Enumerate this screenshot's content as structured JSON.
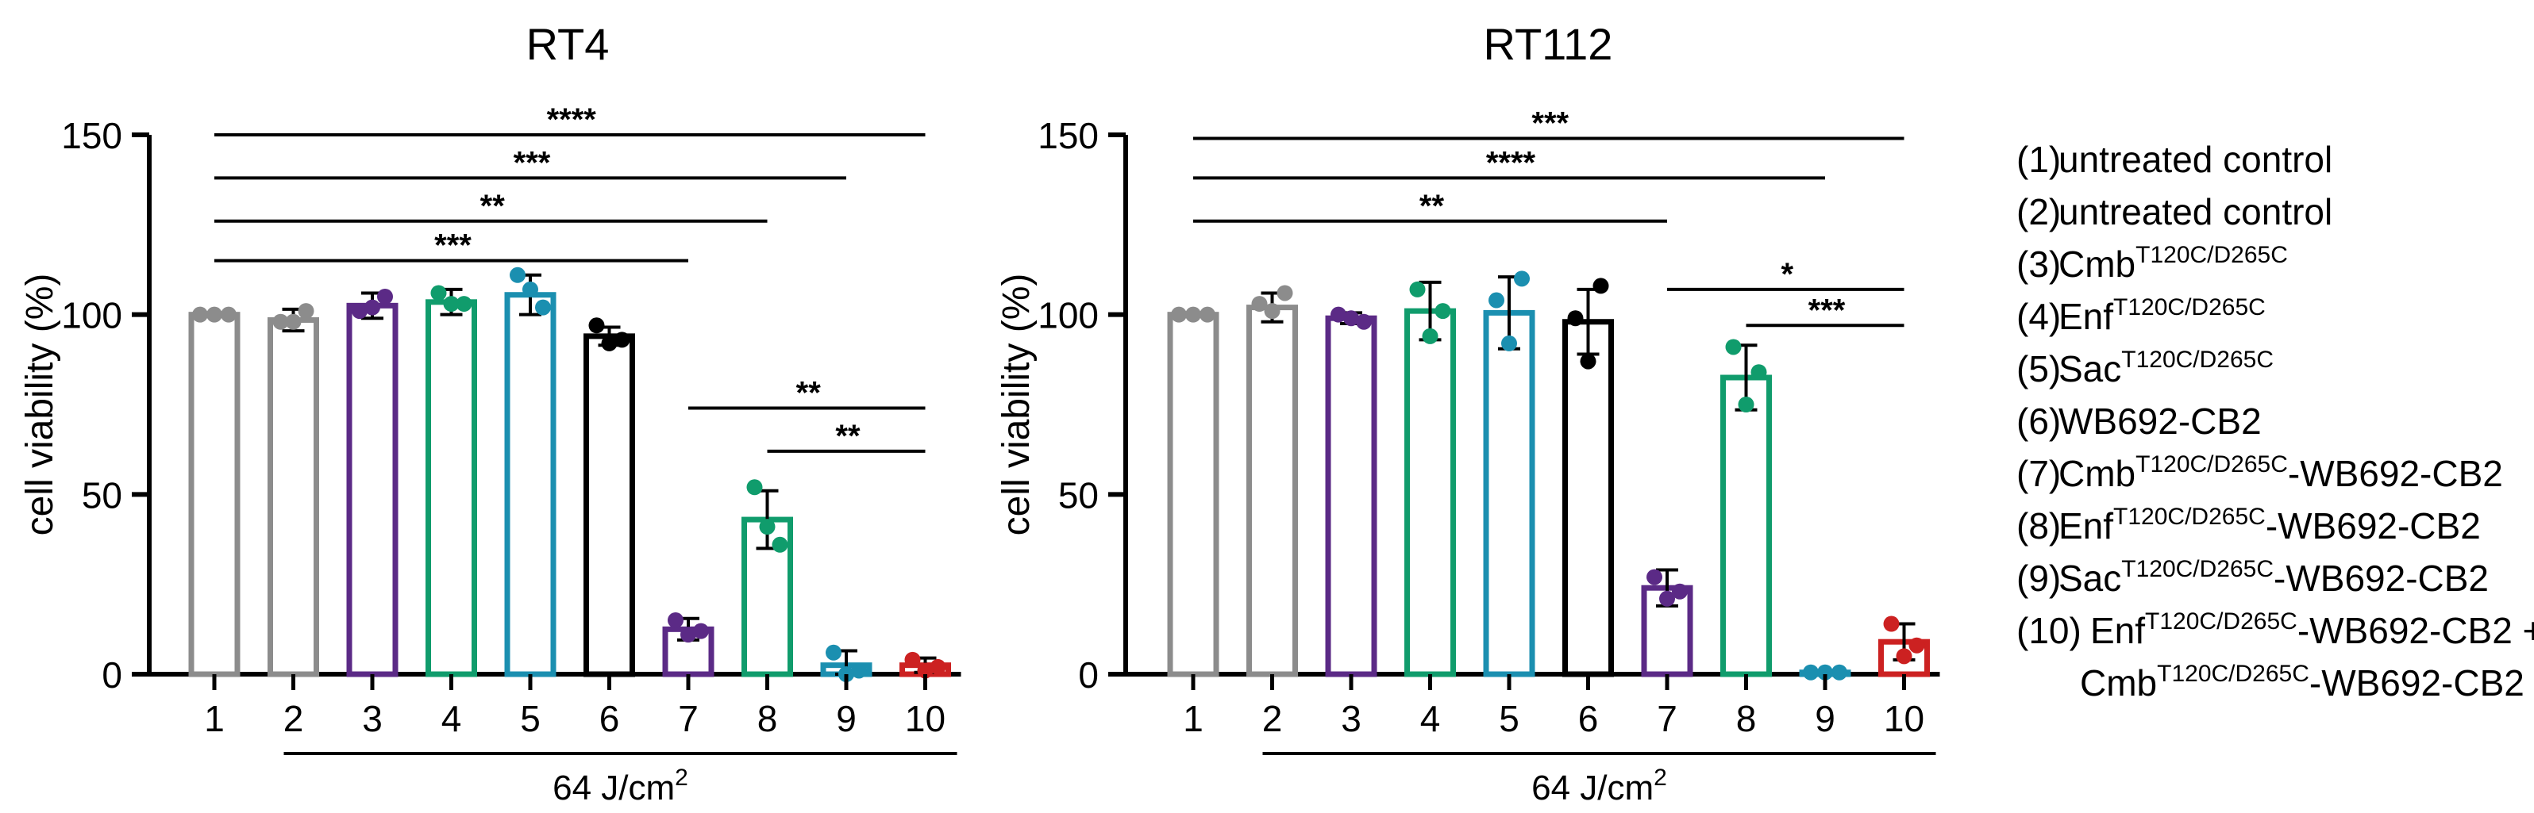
{
  "chart_data": [
    {
      "type": "bar",
      "title": "RT4",
      "ylabel": "cell viability (%)",
      "xlabel": "64 J/cm²",
      "xlabel_main": "64 J/cm",
      "xlabel_sup": "2",
      "ylim": [
        0,
        150
      ],
      "yticks": [
        0,
        50,
        100,
        150
      ],
      "categories": [
        "1",
        "2",
        "3",
        "4",
        "5",
        "6",
        "7",
        "8",
        "9",
        "10"
      ],
      "values": [
        100,
        98.5,
        102.5,
        103.5,
        105.5,
        94,
        12.5,
        43,
        2.5,
        2.5
      ],
      "errors": [
        0.5,
        3,
        3.5,
        3.5,
        5.5,
        2.5,
        3,
        8,
        4,
        2
      ],
      "points": [
        [
          100,
          100,
          100
        ],
        [
          98,
          101,
          98
        ],
        [
          101,
          105,
          102
        ],
        [
          106,
          103,
          103
        ],
        [
          111,
          102,
          107
        ],
        [
          97,
          93,
          92
        ],
        [
          15,
          12,
          11
        ],
        [
          52,
          36,
          41
        ],
        [
          6,
          1,
          0
        ],
        [
          4,
          2,
          1
        ]
      ],
      "bracket": {
        "from": 2,
        "to": 10
      },
      "significance": [
        {
          "from": 1,
          "to": 10,
          "label": "****",
          "y": 150
        },
        {
          "from": 1,
          "to": 9,
          "label": "***",
          "y": 138
        },
        {
          "from": 1,
          "to": 8,
          "label": "**",
          "y": 126
        },
        {
          "from": 1,
          "to": 7,
          "label": "***",
          "y": 115
        },
        {
          "from": 7,
          "to": 10,
          "label": "**",
          "y": 74
        },
        {
          "from": 8,
          "to": 10,
          "label": "**",
          "y": 62
        }
      ]
    },
    {
      "type": "bar",
      "title": "RT112",
      "ylabel": "cell viability (%)",
      "xlabel": "64 J/cm²",
      "xlabel_main": "64 J/cm",
      "xlabel_sup": "2",
      "ylim": [
        0,
        150
      ],
      "yticks": [
        0,
        50,
        100,
        150
      ],
      "categories": [
        "1",
        "2",
        "3",
        "4",
        "5",
        "6",
        "7",
        "8",
        "9",
        "10"
      ],
      "values": [
        100,
        102,
        99,
        101,
        100.5,
        98,
        24,
        82.5,
        0.5,
        9
      ],
      "errors": [
        0.5,
        4,
        1.5,
        8,
        10,
        9,
        5,
        9,
        0.3,
        5
      ],
      "points": [
        [
          100,
          100,
          100
        ],
        [
          103,
          106,
          101
        ],
        [
          100,
          98,
          99
        ],
        [
          107,
          101,
          94
        ],
        [
          104,
          110,
          92
        ],
        [
          99,
          108,
          87
        ],
        [
          27,
          23,
          21
        ],
        [
          91,
          84,
          75
        ],
        [
          0.5,
          0.5,
          0.5
        ],
        [
          14,
          8,
          5
        ]
      ],
      "bracket": {
        "from": 2,
        "to": 10
      },
      "significance": [
        {
          "from": 1,
          "to": 10,
          "label": "***",
          "y": 149
        },
        {
          "from": 1,
          "to": 9,
          "label": "****",
          "y": 138
        },
        {
          "from": 1,
          "to": 7,
          "label": "**",
          "y": 126
        },
        {
          "from": 7,
          "to": 10,
          "label": "*",
          "y": 107
        },
        {
          "from": 8,
          "to": 10,
          "label": "***",
          "y": 97
        }
      ]
    }
  ],
  "colors": {
    "c1": "#8c8c8c",
    "c2": "#8c8c8c",
    "c3": "#5b2a86",
    "c4": "#109c6c",
    "c5": "#1b8fb0",
    "c6": "#000000",
    "c7": "#5b2a86",
    "c8": "#109c6c",
    "c9": "#1b8fb0",
    "c10": "#cc2121"
  },
  "legend": [
    {
      "num": "(1)",
      "parts": [
        {
          "t": "untreated control"
        }
      ]
    },
    {
      "num": "(2)",
      "parts": [
        {
          "t": "untreated control"
        }
      ]
    },
    {
      "num": "(3)",
      "parts": [
        {
          "t": "Cmb"
        },
        {
          "t": "T120C/D265C",
          "sup": true
        }
      ]
    },
    {
      "num": "(4)",
      "parts": [
        {
          "t": "Enf"
        },
        {
          "t": "T120C/D265C",
          "sup": true
        }
      ]
    },
    {
      "num": "(5)",
      "parts": [
        {
          "t": "Sac"
        },
        {
          "t": "T120C/D265C",
          "sup": true
        }
      ]
    },
    {
      "num": "(6)",
      "parts": [
        {
          "t": "WB692-CB2"
        }
      ]
    },
    {
      "num": "(7)",
      "parts": [
        {
          "t": "Cmb"
        },
        {
          "t": "T120C/D265C",
          "sup": true
        },
        {
          "t": "-WB692-CB2"
        }
      ]
    },
    {
      "num": "(8)",
      "parts": [
        {
          "t": "Enf"
        },
        {
          "t": "T120C/D265C",
          "sup": true
        },
        {
          "t": "-WB692-CB2"
        }
      ]
    },
    {
      "num": "(9)",
      "parts": [
        {
          "t": "Sac"
        },
        {
          "t": "T120C/D265C",
          "sup": true
        },
        {
          "t": "-WB692-CB2"
        }
      ]
    },
    {
      "num": "(10)",
      "parts": [
        {
          "t": "Enf"
        },
        {
          "t": "T120C/D265C",
          "sup": true
        },
        {
          "t": "-WB692-CB2 +"
        }
      ]
    },
    {
      "num": "",
      "parts": [
        {
          "t": "Cmb"
        },
        {
          "t": "T120C/D265C",
          "sup": true
        },
        {
          "t": "-WB692-CB2"
        }
      ]
    }
  ]
}
